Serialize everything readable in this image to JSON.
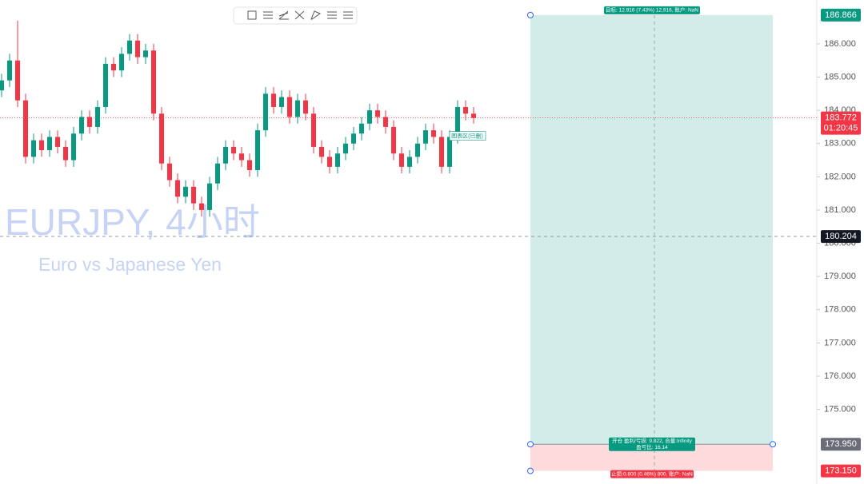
{
  "chart_data": {
    "type": "candlestick",
    "title": "EURJPY, 4小时",
    "subtitle": "Euro vs Japanese Yen",
    "up_color": "#089981",
    "down_color": "#f23645",
    "open": [
      184.6,
      184.9,
      185.5,
      184.3,
      182.6,
      183.1,
      182.8,
      183.2,
      182.9,
      182.5,
      183.3,
      183.8,
      183.5,
      184.1,
      185.4,
      185.2,
      185.7,
      186.1,
      185.6,
      185.8,
      183.9,
      182.4,
      181.9,
      181.4,
      181.7,
      181.2,
      181.0,
      181.8,
      182.4,
      182.9,
      182.7,
      182.5,
      182.2,
      183.4,
      184.5,
      184.1,
      184.4,
      183.8,
      184.3,
      183.9,
      182.9,
      182.6,
      182.3,
      182.7,
      183.0,
      183.3,
      183.6,
      184.0,
      183.8,
      183.5,
      182.7,
      182.3,
      182.6,
      183.0,
      183.4,
      183.2,
      182.3,
      183.2,
      184.1,
      183.9
    ],
    "high": [
      185.1,
      185.7,
      186.7,
      184.5,
      183.3,
      183.3,
      183.4,
      183.4,
      183.1,
      183.5,
      184.0,
      184.0,
      184.3,
      185.6,
      185.6,
      185.9,
      186.3,
      186.3,
      186.0,
      186.0,
      184.1,
      182.6,
      182.1,
      181.9,
      181.9,
      181.4,
      182.0,
      182.6,
      183.1,
      183.1,
      182.9,
      182.7,
      183.6,
      184.7,
      184.7,
      184.6,
      184.6,
      184.5,
      184.5,
      184.1,
      183.1,
      182.8,
      182.9,
      183.2,
      183.5,
      183.8,
      184.2,
      184.2,
      184.0,
      183.7,
      182.9,
      182.8,
      183.2,
      183.6,
      183.6,
      183.4,
      183.4,
      184.3,
      184.3,
      184.1
    ],
    "low": [
      184.4,
      184.7,
      184.1,
      182.4,
      182.4,
      182.6,
      182.6,
      182.7,
      182.3,
      182.3,
      183.1,
      183.3,
      183.3,
      183.9,
      185.0,
      185.0,
      185.5,
      185.4,
      185.4,
      183.7,
      182.2,
      181.7,
      181.2,
      181.2,
      181.0,
      180.8,
      180.8,
      181.6,
      182.2,
      182.5,
      182.3,
      182.0,
      182.0,
      183.2,
      183.9,
      183.9,
      183.6,
      183.6,
      183.7,
      182.7,
      182.4,
      182.1,
      182.1,
      182.5,
      182.8,
      183.1,
      183.4,
      183.6,
      183.3,
      182.5,
      182.1,
      182.1,
      182.4,
      182.8,
      183.0,
      182.1,
      182.1,
      183.0,
      183.7,
      183.6
    ],
    "close": [
      184.9,
      185.5,
      184.3,
      182.6,
      183.1,
      182.8,
      183.2,
      182.9,
      182.5,
      183.3,
      183.8,
      183.5,
      184.1,
      185.4,
      185.2,
      185.7,
      186.1,
      185.6,
      185.8,
      183.9,
      182.4,
      181.9,
      181.4,
      181.7,
      181.2,
      181.0,
      181.8,
      182.4,
      182.9,
      182.7,
      182.5,
      182.2,
      183.4,
      184.5,
      184.1,
      184.4,
      183.8,
      184.3,
      183.9,
      182.9,
      182.6,
      182.3,
      182.7,
      183.0,
      183.3,
      183.6,
      184.0,
      183.8,
      183.5,
      182.7,
      182.3,
      182.6,
      183.0,
      183.4,
      183.2,
      182.3,
      183.2,
      184.1,
      183.9,
      183.77
    ],
    "ylim": [
      172.755,
      187.32
    ],
    "yticks": [
      {
        "value": 186,
        "label": "186.000"
      },
      {
        "value": 185,
        "label": "185.000"
      },
      {
        "value": 184,
        "label": "184.000"
      },
      {
        "value": 183,
        "label": "183.000"
      },
      {
        "value": 182,
        "label": "182.000"
      },
      {
        "value": 181,
        "label": "181.000"
      },
      {
        "value": 180,
        "label": "180.000"
      },
      {
        "value": 179,
        "label": "179.000"
      },
      {
        "value": 178,
        "label": "178.000"
      },
      {
        "value": 177,
        "label": "177.000"
      },
      {
        "value": 176,
        "label": "176.000"
      },
      {
        "value": 175,
        "label": "175.000"
      }
    ],
    "last_price": {
      "value": 183.772,
      "label": "183.772"
    },
    "countdown": "01:20:45",
    "crosshair": {
      "value": 180.204,
      "label": "180.204"
    },
    "drawing_label": "图表区(已删)",
    "position": {
      "target": {
        "value": 186.866,
        "label": "186.866"
      },
      "entry": {
        "value": 173.95,
        "label": "173.950"
      },
      "stop": {
        "value": 173.15,
        "label": "173.150"
      },
      "target_text": "目标: 12.916 (7.43%) 12,916, 账户: NaN",
      "entry_text": "开仓 盈利/亏损: 9.822, 合量:Infinity",
      "ratio_text": "盈亏比: 16.14",
      "stop_text": "止损:0.800 (0.46%) 800, 账户: NaN"
    }
  }
}
